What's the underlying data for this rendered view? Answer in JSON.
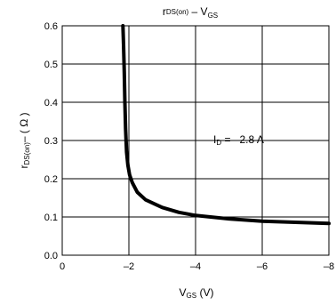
{
  "chart_data": {
    "type": "line",
    "title": {
      "main": "r",
      "sub1": "DS(on)",
      "dash": " – V",
      "sub2": "GS"
    },
    "xlabel": {
      "main": "V",
      "sub": "GS",
      "unit": "  (V)"
    },
    "ylabel": {
      "main": "r",
      "sub": "DS(on)",
      "unit": "– ( Ω )"
    },
    "annotation": {
      "main": "I",
      "sub": "D",
      "rest": " = –2.8 A"
    },
    "xlim": [
      0,
      -8
    ],
    "ylim": [
      0,
      0.6
    ],
    "x_ticks": [
      0,
      -2,
      -4,
      -6,
      -8
    ],
    "x_tick_labels": [
      "0",
      "–2",
      "–4",
      "–6",
      "–8"
    ],
    "y_ticks": [
      0.0,
      0.1,
      0.2,
      0.3,
      0.4,
      0.5,
      0.6
    ],
    "y_tick_labels": [
      "0.0",
      "0.1",
      "0.2",
      "0.3",
      "0.4",
      "0.5",
      "0.6"
    ],
    "grid": true,
    "series": [
      {
        "x": [
          -1.82,
          -1.84,
          -1.86,
          -1.88,
          -1.9,
          -1.93,
          -1.97,
          -2.02,
          -2.1,
          -2.25,
          -2.5,
          -3.0,
          -3.5,
          -4.0,
          -5.0,
          -6.0,
          -7.0,
          -8.0
        ],
        "y": [
          0.6,
          0.55,
          0.48,
          0.4,
          0.33,
          0.27,
          0.235,
          0.21,
          0.19,
          0.165,
          0.145,
          0.125,
          0.112,
          0.104,
          0.095,
          0.089,
          0.086,
          0.083
        ]
      }
    ]
  }
}
